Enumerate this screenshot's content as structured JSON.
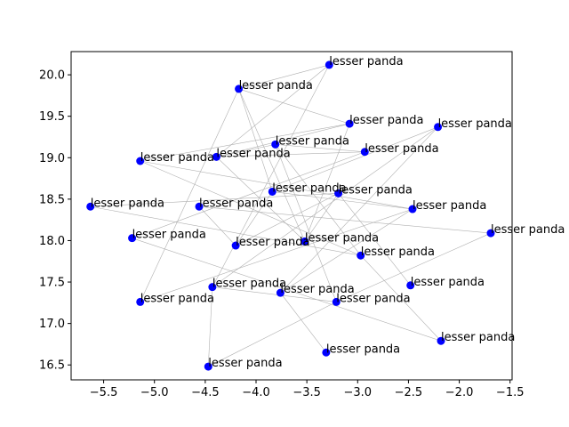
{
  "chart_data": {
    "type": "scatter",
    "title": "",
    "xlabel": "",
    "ylabel": "",
    "xlim": [
      -5.82,
      -1.48
    ],
    "ylim": [
      16.32,
      20.28
    ],
    "xticks": [
      -5.5,
      -5.0,
      -4.5,
      -4.0,
      -3.5,
      -3.0,
      -2.5,
      -2.0,
      -1.5
    ],
    "yticks": [
      16.5,
      17.0,
      17.5,
      18.0,
      18.5,
      19.0,
      19.5,
      20.0
    ],
    "grid": false,
    "point_color": "#0000ff",
    "edge_color": "#b0b0b0",
    "points": [
      {
        "x": -3.28,
        "y": 20.12,
        "label": "lesser panda"
      },
      {
        "x": -4.17,
        "y": 19.83,
        "label": "lesser panda"
      },
      {
        "x": -3.08,
        "y": 19.41,
        "label": "lesser panda"
      },
      {
        "x": -2.21,
        "y": 19.37,
        "label": "lesser panda"
      },
      {
        "x": -3.81,
        "y": 19.16,
        "label": "lesser panda"
      },
      {
        "x": -2.93,
        "y": 19.07,
        "label": "lesser panda"
      },
      {
        "x": -4.39,
        "y": 19.01,
        "label": "lesser panda"
      },
      {
        "x": -5.14,
        "y": 18.96,
        "label": "lesser panda"
      },
      {
        "x": -3.84,
        "y": 18.59,
        "label": "lesser panda"
      },
      {
        "x": -3.19,
        "y": 18.57,
        "label": "lesser panda"
      },
      {
        "x": -5.63,
        "y": 18.41,
        "label": "lesser panda"
      },
      {
        "x": -4.56,
        "y": 18.41,
        "label": "lesser panda"
      },
      {
        "x": -2.46,
        "y": 18.38,
        "label": "lesser panda"
      },
      {
        "x": -1.69,
        "y": 18.09,
        "label": "lesser panda"
      },
      {
        "x": -5.22,
        "y": 18.03,
        "label": "lesser panda"
      },
      {
        "x": -3.52,
        "y": 17.99,
        "label": "lesser panda"
      },
      {
        "x": -4.2,
        "y": 17.94,
        "label": "lesser panda"
      },
      {
        "x": -2.97,
        "y": 17.82,
        "label": "lesser panda"
      },
      {
        "x": -2.48,
        "y": 17.46,
        "label": "lesser panda"
      },
      {
        "x": -4.43,
        "y": 17.44,
        "label": "lesser panda"
      },
      {
        "x": -3.76,
        "y": 17.37,
        "label": "lesser panda"
      },
      {
        "x": -3.21,
        "y": 17.26,
        "label": "lesser panda"
      },
      {
        "x": -5.14,
        "y": 17.26,
        "label": "lesser panda"
      },
      {
        "x": -2.18,
        "y": 16.79,
        "label": "lesser panda"
      },
      {
        "x": -3.31,
        "y": 16.65,
        "label": "lesser panda"
      },
      {
        "x": -4.47,
        "y": 16.48,
        "label": "lesser panda"
      }
    ],
    "edges": [
      [
        1,
        0
      ],
      [
        0,
        6
      ],
      [
        1,
        2
      ],
      [
        2,
        6
      ],
      [
        4,
        6
      ],
      [
        4,
        5
      ],
      [
        6,
        5
      ],
      [
        7,
        2
      ],
      [
        6,
        15
      ],
      [
        1,
        15
      ],
      [
        0,
        19
      ],
      [
        1,
        22
      ],
      [
        7,
        17
      ],
      [
        7,
        12
      ],
      [
        8,
        3
      ],
      [
        8,
        12
      ],
      [
        8,
        16
      ],
      [
        10,
        17
      ],
      [
        10,
        9
      ],
      [
        11,
        13
      ],
      [
        11,
        16
      ],
      [
        14,
        23
      ],
      [
        12,
        22
      ],
      [
        15,
        9
      ],
      [
        16,
        9
      ],
      [
        18,
        9
      ],
      [
        19,
        25
      ],
      [
        19,
        3
      ],
      [
        20,
        3
      ],
      [
        20,
        24
      ],
      [
        21,
        25
      ],
      [
        21,
        13
      ],
      [
        2,
        15
      ],
      [
        4,
        21
      ],
      [
        4,
        17
      ],
      [
        14,
        5
      ],
      [
        17,
        23
      ],
      [
        21,
        19
      ],
      [
        12,
        20
      ],
      [
        1,
        8
      ]
    ]
  }
}
